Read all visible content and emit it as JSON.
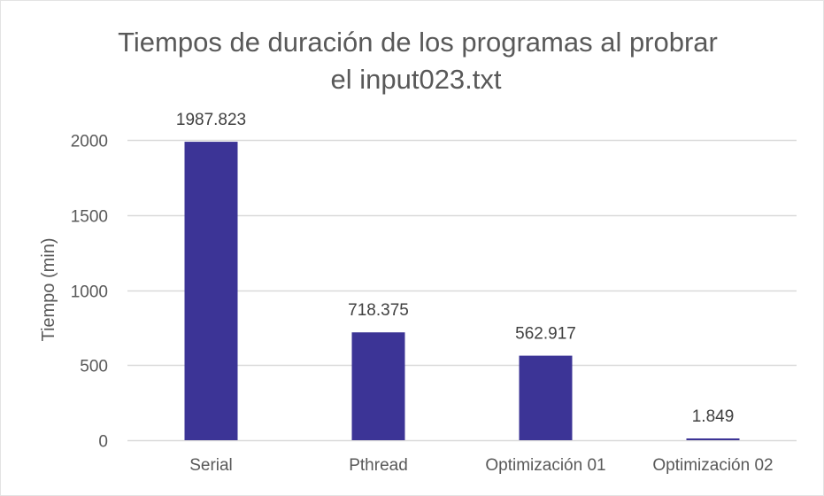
{
  "chart_data": {
    "type": "bar",
    "title_lines": [
      "Tiempos de duración de los programas al probrar",
      "el input023.txt"
    ],
    "xlabel": "",
    "ylabel": "Tiempo (min)",
    "categories": [
      "Serial",
      "Pthread",
      "Optimización 01",
      "Optimización 02"
    ],
    "values": [
      1987.823,
      718.375,
      562.917,
      1.849
    ],
    "data_labels": [
      "1987.823",
      "718.375",
      "562.917",
      "1.849"
    ],
    "ylim": [
      0,
      2000
    ],
    "yticks": [
      0,
      500,
      1000,
      1500,
      2000
    ],
    "grid": true,
    "legend": "none",
    "bar_color": "#3c3496"
  }
}
